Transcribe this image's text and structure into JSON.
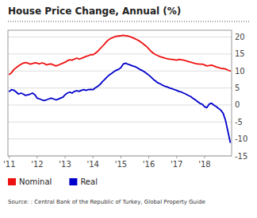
{
  "chart_data": {
    "type": "line",
    "title": "House Price Change, Annual (%)",
    "annotations": [
      "Source: : Central Bank of the Republic of Turkey, Global Property Guide"
    ],
    "x": [
      2011.0,
      2011.08,
      2011.17,
      2011.25,
      2011.33,
      2011.42,
      2011.5,
      2011.58,
      2011.67,
      2011.75,
      2011.83,
      2011.92,
      2012.0,
      2012.08,
      2012.17,
      2012.25,
      2012.33,
      2012.42,
      2012.5,
      2012.58,
      2012.67,
      2012.75,
      2012.83,
      2012.92,
      2013.0,
      2013.08,
      2013.17,
      2013.25,
      2013.33,
      2013.42,
      2013.5,
      2013.58,
      2013.67,
      2013.75,
      2013.83,
      2013.92,
      2014.0,
      2014.08,
      2014.17,
      2014.25,
      2014.33,
      2014.42,
      2014.5,
      2014.58,
      2014.67,
      2014.75,
      2014.83,
      2014.92,
      2015.0,
      2015.08,
      2015.17,
      2015.25,
      2015.33,
      2015.42,
      2015.5,
      2015.58,
      2015.67,
      2015.75,
      2015.83,
      2015.92,
      2016.0,
      2016.08,
      2016.17,
      2016.25,
      2016.33,
      2016.42,
      2016.5,
      2016.58,
      2016.67,
      2016.75,
      2016.83,
      2016.92,
      2017.0,
      2017.08,
      2017.17,
      2017.25,
      2017.33,
      2017.42,
      2017.5,
      2017.58,
      2017.67,
      2017.75,
      2017.83,
      2017.92,
      2018.0,
      2018.08,
      2018.17,
      2018.25,
      2018.33,
      2018.42,
      2018.5,
      2018.58,
      2018.67,
      2018.75,
      2018.83,
      2018.92
    ],
    "series": [
      {
        "name": "Nominal",
        "color": "#ee1111",
        "values": [
          9.0,
          9.5,
          10.5,
          11.0,
          11.5,
          12.0,
          12.3,
          12.5,
          12.3,
          12.0,
          12.2,
          12.4,
          12.3,
          12.1,
          12.4,
          12.2,
          11.8,
          12.0,
          12.1,
          11.8,
          11.5,
          11.7,
          12.0,
          12.3,
          12.6,
          13.0,
          13.3,
          13.2,
          13.5,
          13.8,
          13.5,
          13.7,
          14.0,
          14.3,
          14.5,
          14.8,
          14.8,
          15.2,
          15.8,
          16.5,
          17.2,
          18.0,
          18.8,
          19.3,
          19.7,
          20.0,
          20.2,
          20.3,
          20.4,
          20.5,
          20.4,
          20.3,
          20.1,
          19.8,
          19.5,
          19.2,
          18.8,
          18.3,
          17.8,
          17.2,
          16.5,
          15.8,
          15.2,
          14.8,
          14.5,
          14.2,
          14.0,
          13.8,
          13.6,
          13.5,
          13.4,
          13.3,
          13.2,
          13.4,
          13.3,
          13.2,
          13.0,
          12.8,
          12.6,
          12.4,
          12.2,
          12.1,
          12.0,
          12.0,
          11.8,
          11.5,
          11.6,
          11.7,
          11.5,
          11.2,
          11.0,
          10.8,
          10.7,
          10.6,
          10.3,
          10.0
        ]
      },
      {
        "name": "Real",
        "color": "#0000cc",
        "values": [
          4.0,
          4.5,
          4.3,
          3.8,
          3.2,
          3.5,
          3.2,
          2.8,
          3.0,
          3.2,
          3.5,
          3.0,
          2.0,
          1.8,
          1.5,
          1.3,
          1.5,
          1.8,
          2.0,
          1.8,
          1.5,
          1.7,
          2.0,
          2.3,
          3.0,
          3.5,
          3.8,
          3.5,
          4.0,
          4.2,
          4.0,
          4.3,
          4.5,
          4.3,
          4.5,
          4.6,
          4.5,
          5.0,
          5.5,
          6.0,
          6.8,
          7.5,
          8.2,
          8.8,
          9.3,
          9.8,
          10.2,
          10.5,
          11.0,
          12.0,
          12.3,
          12.0,
          11.8,
          11.5,
          11.3,
          11.0,
          10.5,
          10.2,
          9.8,
          9.3,
          8.8,
          8.2,
          7.5,
          7.0,
          6.5,
          6.2,
          5.8,
          5.5,
          5.3,
          5.0,
          4.8,
          4.5,
          4.3,
          4.0,
          3.8,
          3.5,
          3.2,
          2.8,
          2.5,
          2.0,
          1.5,
          1.0,
          0.5,
          0.2,
          -0.5,
          -0.8,
          0.3,
          0.5,
          0.0,
          -0.5,
          -1.0,
          -1.5,
          -2.5,
          -4.5,
          -7.5,
          -11.0
        ]
      }
    ],
    "xlim": [
      2010.95,
      2018.97
    ],
    "xticks": [
      {
        "value": 2011,
        "label": "'11"
      },
      {
        "value": 2012,
        "label": "'12"
      },
      {
        "value": 2013,
        "label": "'13"
      },
      {
        "value": 2014,
        "label": "'14"
      },
      {
        "value": 2015,
        "label": "'15"
      },
      {
        "value": 2016,
        "label": "'16"
      },
      {
        "value": 2017,
        "label": "'17"
      },
      {
        "value": 2018,
        "label": "'18"
      }
    ],
    "ylim": [
      -15,
      22
    ],
    "yticks": [
      -15,
      -10,
      -5,
      0,
      5,
      10,
      15,
      20
    ],
    "grid": true,
    "legend": "bottom"
  }
}
